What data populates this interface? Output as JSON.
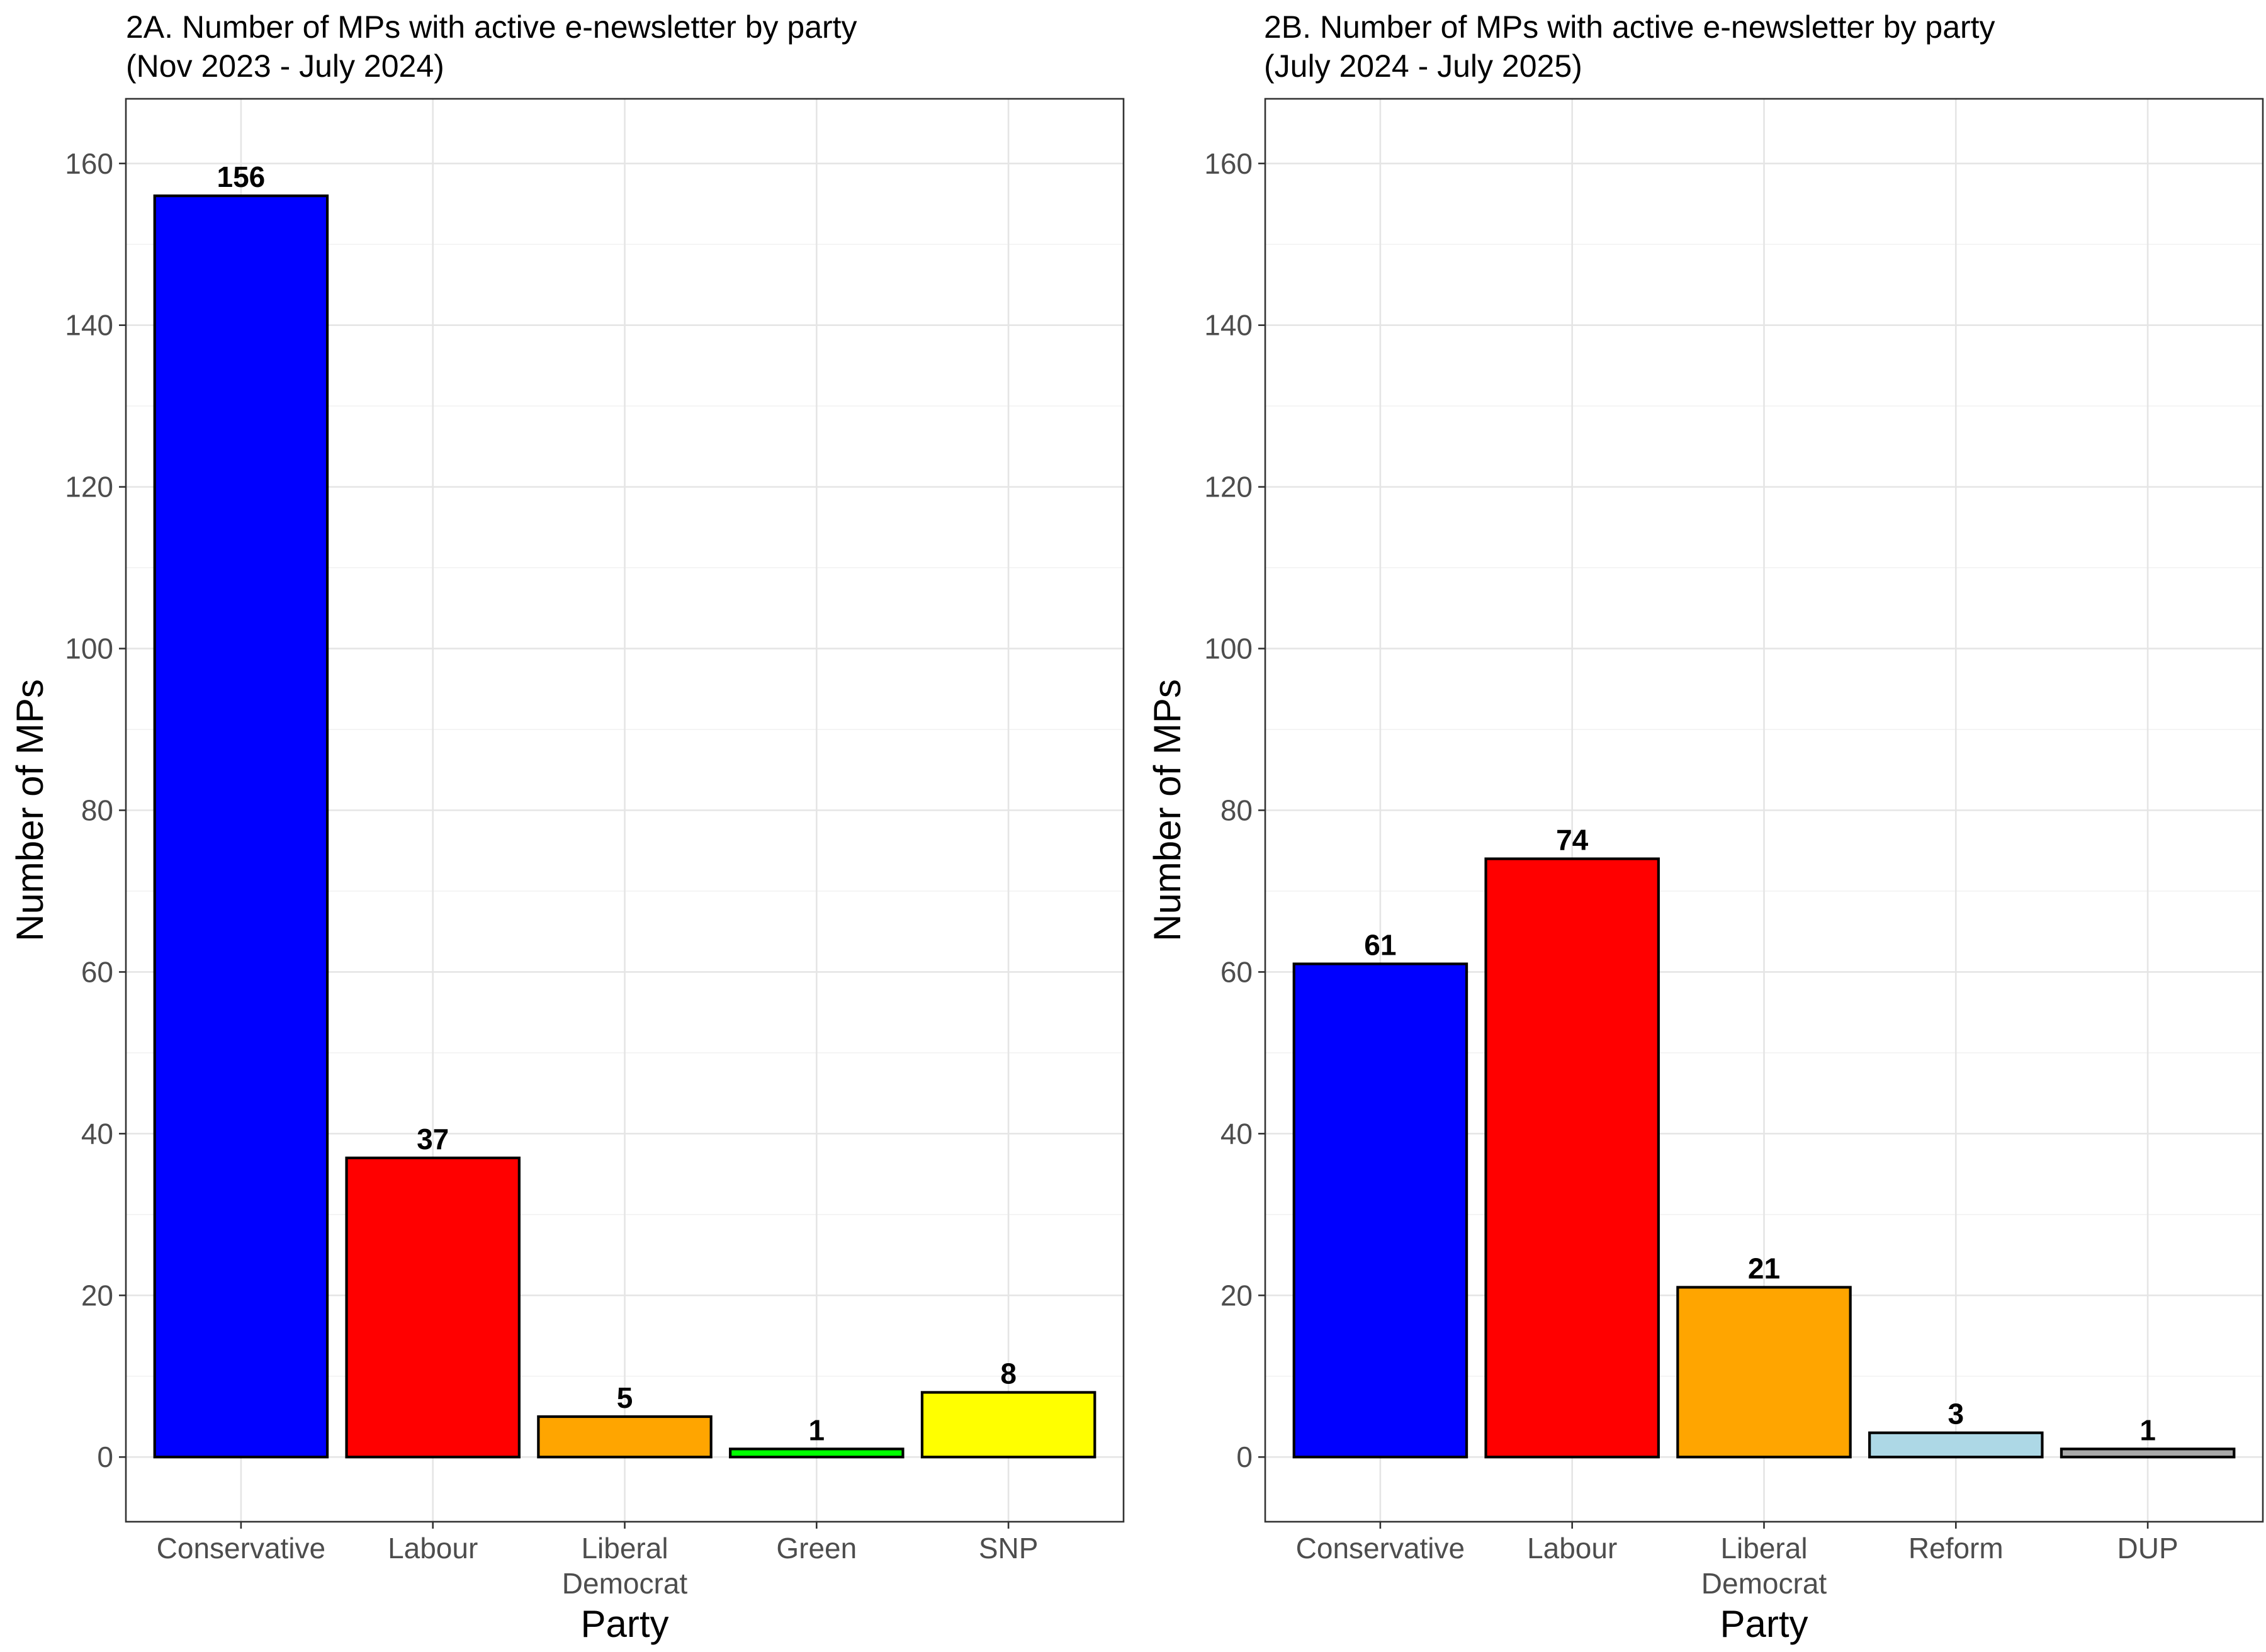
{
  "chart_data": [
    {
      "type": "bar",
      "title": "2A. Number of MPs with active e-newsletter by party",
      "subtitle": "(Nov 2023 - July 2024)",
      "xlabel": "Party",
      "ylabel": "Number of MPs",
      "ylim": [
        -8,
        168
      ],
      "yticks": [
        0,
        20,
        40,
        60,
        80,
        100,
        120,
        140,
        160
      ],
      "grid": true,
      "categories": [
        [
          "Conservative"
        ],
        [
          "Labour"
        ],
        [
          "Liberal",
          "Democrat"
        ],
        [
          "Green"
        ],
        [
          "SNP"
        ]
      ],
      "values": [
        156,
        37,
        5,
        1,
        8
      ],
      "data_labels": [
        "156",
        "37",
        "5",
        "1",
        "8"
      ],
      "colors": [
        "#0000ff",
        "#ff0000",
        "#ffa500",
        "#00ff00",
        "#ffff00"
      ]
    },
    {
      "type": "bar",
      "title": "2B. Number of MPs with active e-newsletter by party",
      "subtitle": "(July 2024 - July 2025)",
      "xlabel": "Party",
      "ylabel": "Number of MPs",
      "ylim": [
        -8,
        168
      ],
      "yticks": [
        0,
        20,
        40,
        60,
        80,
        100,
        120,
        140,
        160
      ],
      "grid": true,
      "categories": [
        [
          "Conservative"
        ],
        [
          "Labour"
        ],
        [
          "Liberal",
          "Democrat"
        ],
        [
          "Reform"
        ],
        [
          "DUP"
        ]
      ],
      "values": [
        61,
        74,
        21,
        3,
        1
      ],
      "data_labels": [
        "61",
        "74",
        "21",
        "3",
        "1"
      ],
      "colors": [
        "#0000ff",
        "#ff0000",
        "#ffa500",
        "#add8e6",
        "#a9a9a9"
      ]
    }
  ]
}
